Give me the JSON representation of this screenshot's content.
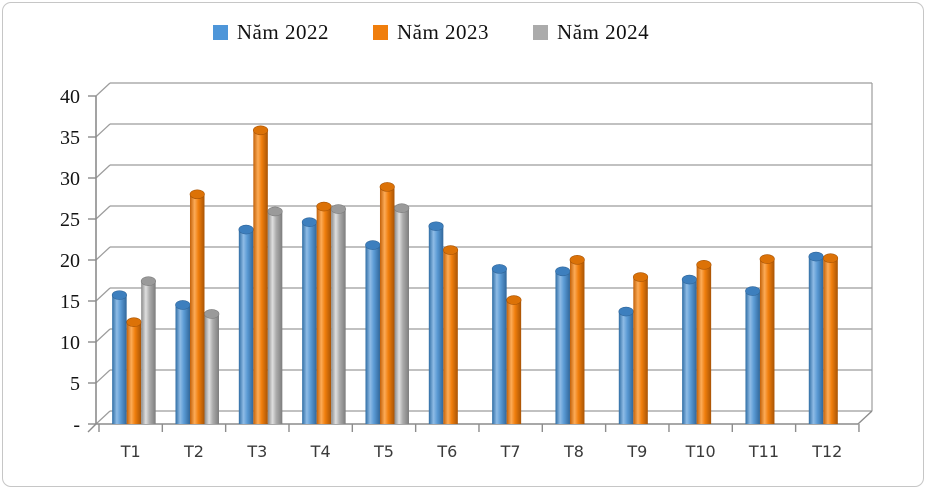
{
  "chart_data": {
    "type": "bar",
    "style": "3d-cylinder-clustered",
    "title": "",
    "xlabel": "",
    "ylabel": "",
    "categories": [
      "T1",
      "T2",
      "T3",
      "T4",
      "T5",
      "T6",
      "T7",
      "T8",
      "T9",
      "T10",
      "T11",
      "T12"
    ],
    "series": [
      {
        "name": "Năm 2022",
        "color": "#4e96d9",
        "gradient": [
          "#2f6da4",
          "#8fbce6",
          "#5b9bd5",
          "#31679b"
        ],
        "cap_color": "#3d7fbe",
        "values": [
          15.9,
          14.7,
          23.9,
          24.8,
          22.0,
          24.3,
          19.1,
          18.8,
          13.9,
          17.8,
          16.4,
          20.6
        ]
      },
      {
        "name": "Năm 2023",
        "color": "#f07e0c",
        "gradient": [
          "#c36108",
          "#fcab57",
          "#f07e0c",
          "#a85405"
        ],
        "cap_color": "#dc7207",
        "values": [
          12.6,
          28.2,
          36.0,
          26.7,
          29.1,
          21.4,
          15.3,
          20.2,
          18.1,
          19.6,
          20.3,
          20.4
        ]
      },
      {
        "name": "Năm 2024",
        "color": "#ababab",
        "gradient": [
          "#8a8a8a",
          "#dfdfdf",
          "#ababab",
          "#7d7d7d"
        ],
        "cap_color": "#9a9a9a",
        "values": [
          17.6,
          13.6,
          26.1,
          26.4,
          26.5,
          null,
          null,
          null,
          null,
          null,
          null,
          null
        ]
      }
    ],
    "ylim": [
      0,
      40
    ],
    "ytick_step": 5,
    "ytick_labels": [
      "-",
      "5",
      "10",
      "15",
      "20",
      "25",
      "30",
      "35",
      "40"
    ],
    "grid": true,
    "legend_position": "top",
    "colors": {
      "gridline": "#9c9c9c",
      "axis": "#8c8c8c",
      "frame_border": "#c6c6c6",
      "ylabel_text": "#141414",
      "xlabel_text": "#3a3a3a",
      "background": "#ffffff"
    }
  }
}
